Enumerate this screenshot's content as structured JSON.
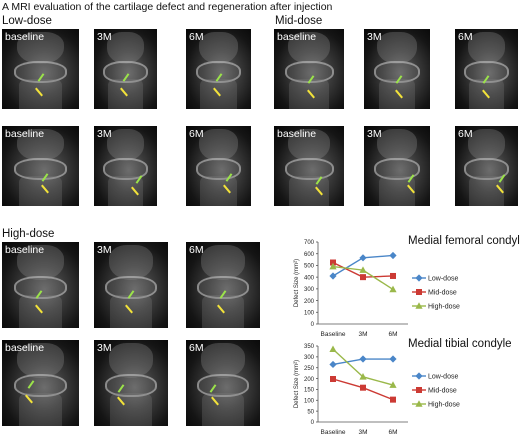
{
  "figure": {
    "heading": "A  MRI evaluation of the cartilage defect and regeneration after injection"
  },
  "groups": [
    {
      "label": "Low-dose",
      "rows": [
        [
          "baseline",
          "3M",
          "6M"
        ],
        [
          "baseline",
          "3M",
          "6M"
        ]
      ]
    },
    {
      "label": "Mid-dose",
      "rows": [
        [
          "baseline",
          "3M",
          "6M"
        ],
        [
          "baseline",
          "3M",
          "6M"
        ]
      ]
    },
    {
      "label": "High-dose",
      "rows": [
        [
          "baseline",
          "3M",
          "6M"
        ],
        [
          "baseline",
          "3M",
          "6M"
        ]
      ]
    }
  ],
  "colors": {
    "low": "#4a86c8",
    "mid": "#cc3a34",
    "high": "#9ab84a",
    "arrow_green": "#9be34a",
    "arrow_yellow": "#f2e23a"
  },
  "chart_data": [
    {
      "type": "line",
      "title": "Medial femoral condyle",
      "categories": [
        "Baseline",
        "3M",
        "6M"
      ],
      "ylabel": "Defect Size (mm²)",
      "ylim": [
        0,
        700
      ],
      "yticks": [
        0,
        100,
        200,
        300,
        400,
        500,
        600,
        700
      ],
      "legend": "right",
      "series": [
        {
          "name": "Low-dose",
          "color": "#4a86c8",
          "marker": "diamond",
          "values": [
            410,
            565,
            585
          ]
        },
        {
          "name": "Mid-dose",
          "color": "#cc3a34",
          "marker": "square",
          "values": [
            525,
            400,
            410
          ]
        },
        {
          "name": "High-dose",
          "color": "#9ab84a",
          "marker": "triangle",
          "values": [
            490,
            460,
            295
          ]
        }
      ]
    },
    {
      "type": "line",
      "title": "Medial tibial condyle",
      "categories": [
        "Baseline",
        "3M",
        "6M"
      ],
      "ylabel": "Defect Size (mm²)",
      "ylim": [
        0,
        350
      ],
      "yticks": [
        0,
        50,
        100,
        150,
        200,
        250,
        300,
        350
      ],
      "legend": "right",
      "series": [
        {
          "name": "Low-dose",
          "color": "#4a86c8",
          "marker": "diamond",
          "values": [
            265,
            290,
            290
          ]
        },
        {
          "name": "Mid-dose",
          "color": "#cc3a34",
          "marker": "square",
          "values": [
            198,
            158,
            103
          ]
        },
        {
          "name": "High-dose",
          "color": "#9ab84a",
          "marker": "triangle",
          "values": [
            335,
            208,
            170
          ]
        }
      ]
    }
  ]
}
